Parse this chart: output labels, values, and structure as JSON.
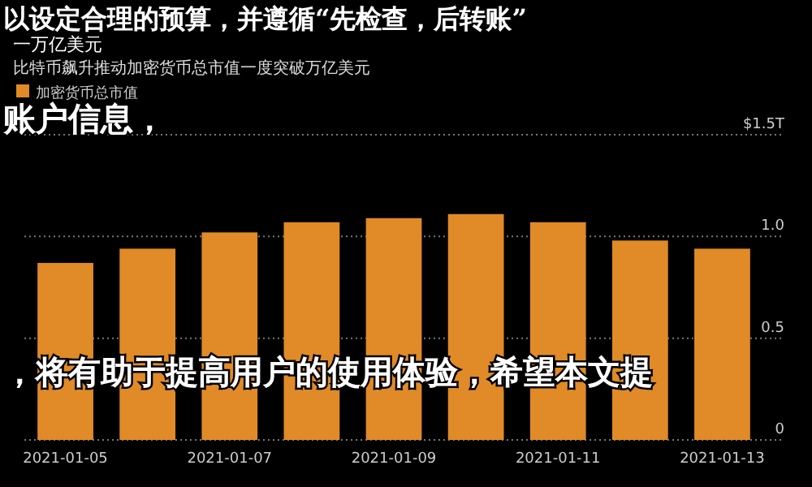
{
  "chart_data": {
    "type": "bar",
    "title": "一万亿美元",
    "subtitle": "比特币飙升推动加密货币总市值一度突破万亿美元",
    "categories": [
      "2021-01-05",
      null,
      "2021-01-07",
      null,
      "2021-01-09",
      null,
      "2021-01-11",
      null,
      "2021-01-13"
    ],
    "series": [
      {
        "name": "加密货币总市值",
        "color": "#e08a28",
        "values": [
          0.87,
          0.94,
          1.02,
          1.07,
          1.09,
          1.11,
          1.07,
          0.98,
          0.94
        ]
      }
    ],
    "ylim": [
      0,
      1.5
    ],
    "yticks": [
      {
        "value": 0,
        "label": "0"
      },
      {
        "value": 0.5,
        "label": "0.5"
      },
      {
        "value": 1.0,
        "label": "1.0"
      },
      {
        "value": 1.5,
        "label": "$1.5T"
      }
    ],
    "grid": "y",
    "legend": "top left",
    "annotations": [
      "以设定合理的预算，并遵循“先检查，后转账”",
      "账户信息，",
      "，将有助于提高用户的使用体验，希望本文提"
    ]
  }
}
